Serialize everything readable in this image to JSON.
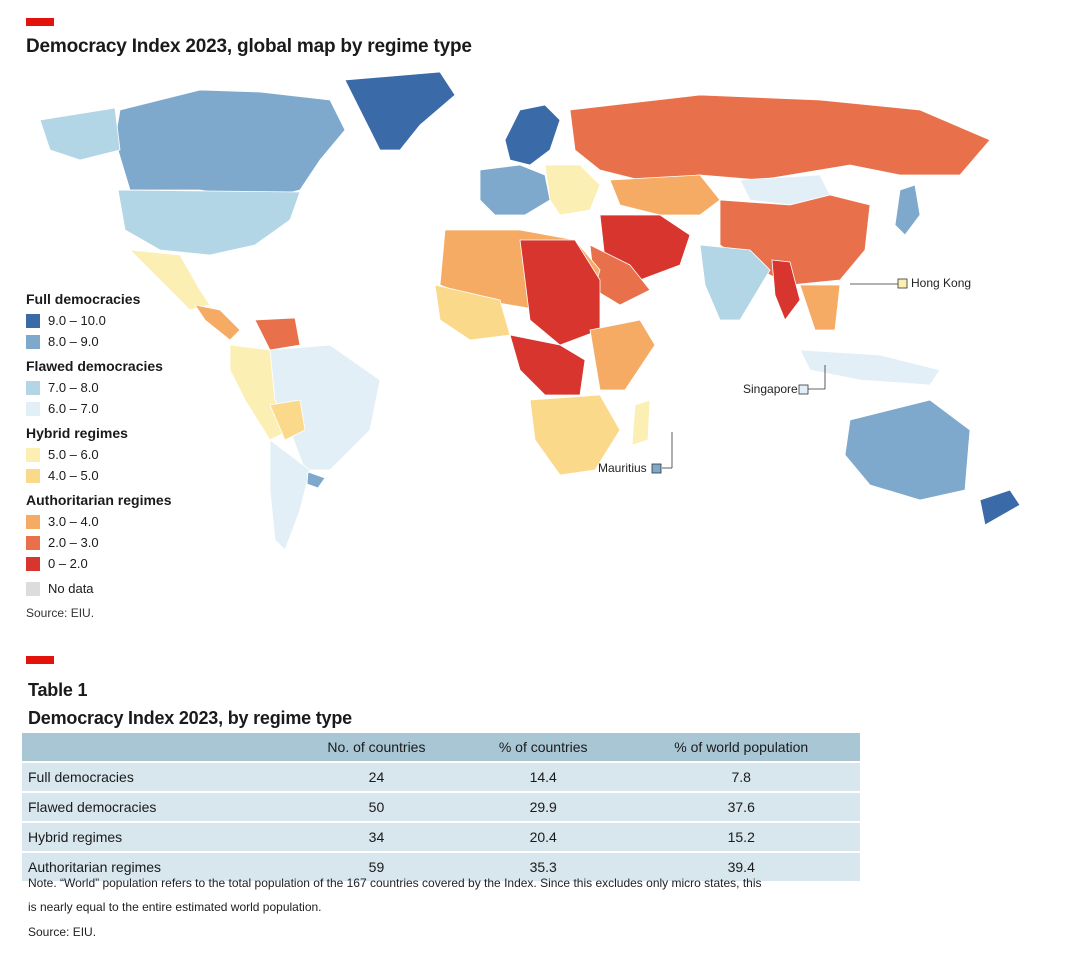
{
  "figure": {
    "title": "Democracy Index 2023, global map by regime type",
    "source": "Source: EIU.",
    "callouts": [
      "Hong Kong",
      "Singapore",
      "Mauritius"
    ]
  },
  "legend": {
    "groups": [
      {
        "name": "Full democracies",
        "items": [
          {
            "label": "9.0 – 10.0",
            "color": "#3a6aa8"
          },
          {
            "label": "8.0 – 9.0",
            "color": "#7ea9cc"
          }
        ]
      },
      {
        "name": "Flawed democracies",
        "items": [
          {
            "label": "7.0 – 8.0",
            "color": "#b3d6e6"
          },
          {
            "label": "6.0 – 7.0",
            "color": "#e2eff6"
          }
        ]
      },
      {
        "name": "Hybrid regimes",
        "items": [
          {
            "label": "5.0 – 6.0",
            "color": "#fcefb4"
          },
          {
            "label": "4.0 – 5.0",
            "color": "#fbd98b"
          }
        ]
      },
      {
        "name": "Authoritarian regimes",
        "items": [
          {
            "label": "3.0 – 4.0",
            "color": "#f5ab63"
          },
          {
            "label": "2.0 – 3.0",
            "color": "#e8704a"
          },
          {
            "label": "0 – 2.0",
            "color": "#d7352d"
          }
        ]
      }
    ],
    "nodata": {
      "label": "No data",
      "color": "#dcdcdc"
    }
  },
  "table": {
    "label": "Table 1",
    "title": "Democracy Index 2023, by regime type",
    "headers": [
      "",
      "No. of countries",
      "% of countries",
      "% of world population"
    ],
    "rows": [
      [
        "Full democracies",
        "24",
        "14.4",
        "7.8"
      ],
      [
        "Flawed democracies",
        "50",
        "29.9",
        "37.6"
      ],
      [
        "Hybrid regimes",
        "34",
        "20.4",
        "15.2"
      ],
      [
        "Authoritarian regimes",
        "59",
        "35.3",
        "39.4"
      ]
    ],
    "note": "Note. “World” population refers to the total population of the 167 countries covered by the Index. Since this excludes only micro states, this",
    "note2": "is nearly equal to the entire estimated world population.",
    "source": "Source: EIU."
  }
}
